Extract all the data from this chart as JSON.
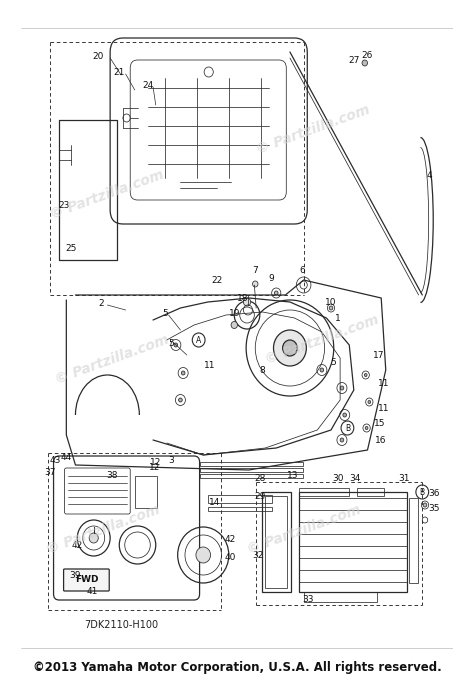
{
  "footer": "©2013 Yamaha Motor Corporation, U.S.A. All rights reserved.",
  "watermark": "© Partzilla.com",
  "part_number": "7DK2110-H100",
  "bg_color": "#ffffff",
  "line_color": "#2a2a2a",
  "watermark_color": "#d0d0d0",
  "footer_color": "#111111",
  "footer_fontsize": 8.5,
  "watermark_fontsize": 10
}
